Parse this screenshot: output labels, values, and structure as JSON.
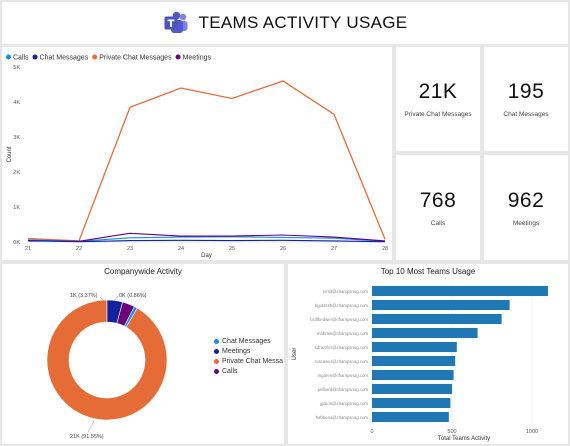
{
  "header": {
    "title": "TEAMS ACTIVITY USAGE",
    "logo_icon": "teams-logo-icon"
  },
  "line_chart": {
    "legend": [
      {
        "label": "Calls",
        "color": "#118dff"
      },
      {
        "label": "Chat Messages",
        "color": "#12239e"
      },
      {
        "label": "Private Chat Messages",
        "color": "#e66c37"
      },
      {
        "label": "Meetings",
        "color": "#6b007b"
      }
    ]
  },
  "kpis": [
    {
      "value": "21K",
      "label": "Private Chat Messages"
    },
    {
      "value": "195",
      "label": "Chat Messages"
    },
    {
      "value": "768",
      "label": "Calls"
    },
    {
      "value": "962",
      "label": "Meetings"
    }
  ],
  "donut": {
    "title": "Companywide Activity",
    "legend": [
      {
        "label": "Chat Messages",
        "color": "#118dff"
      },
      {
        "label": "Meetings",
        "color": "#12239e"
      },
      {
        "label": "Private Chat Messa",
        "color": "#e66c37"
      },
      {
        "label": "Calls",
        "color": "#6b007b"
      }
    ]
  },
  "bar": {
    "title": "Top 10 Most Teams Usage"
  },
  "chart_data": [
    {
      "type": "line",
      "x": [
        21,
        22,
        23,
        24,
        25,
        26,
        27,
        28
      ],
      "series": [
        {
          "name": "Calls",
          "values": [
            60,
            20,
            120,
            140,
            150,
            130,
            110,
            20
          ]
        },
        {
          "name": "Chat Messages",
          "values": [
            40,
            10,
            40,
            50,
            40,
            50,
            30,
            10
          ]
        },
        {
          "name": "Private Chat Messages",
          "values": [
            100,
            30,
            3850,
            4400,
            4100,
            4600,
            3650,
            80
          ]
        },
        {
          "name": "Meetings",
          "values": [
            30,
            20,
            250,
            170,
            170,
            200,
            140,
            30
          ]
        }
      ],
      "xlabel": "Day",
      "ylabel": "Count",
      "ylim": [
        0,
        5000
      ],
      "yticks": [
        "0K",
        "1K",
        "2K",
        "3K",
        "4K",
        "5K"
      ],
      "grid": false,
      "legend": "top-left"
    },
    {
      "type": "pie",
      "title": "Companywide Activity",
      "labels": [
        "Private Chat Messages",
        "Meetings",
        "Calls",
        "Chat Messages"
      ],
      "values": [
        21000,
        962,
        768,
        195
      ],
      "data_labels": [
        "21K (91.55%)",
        "",
        "1K (3.37%)",
        "0K (0.86%)"
      ],
      "legend": "right"
    },
    {
      "type": "bar",
      "title": "Top 10 Most Teams Usage",
      "categories": [
        "jsmit@champsnog.com",
        "bgoldsith@champsnog.com",
        "bcilfbedwer@champsnog.com",
        "mabraw@champsnog.com",
        "sdrazzler@champsnog.com",
        "roscawer@champsnog.com",
        "mgaren@champsnog.com",
        "jwilserd@champsnog.com",
        "jgaron@champsnog.com",
        "hebbens@champsnog.com"
      ],
      "values": [
        1100,
        860,
        810,
        660,
        530,
        520,
        510,
        500,
        490,
        480
      ],
      "xlabel": "Total Teams Activity",
      "ylabel": "User",
      "xlim": [
        0,
        1150
      ],
      "xticks": [
        0,
        500,
        1000
      ]
    }
  ]
}
